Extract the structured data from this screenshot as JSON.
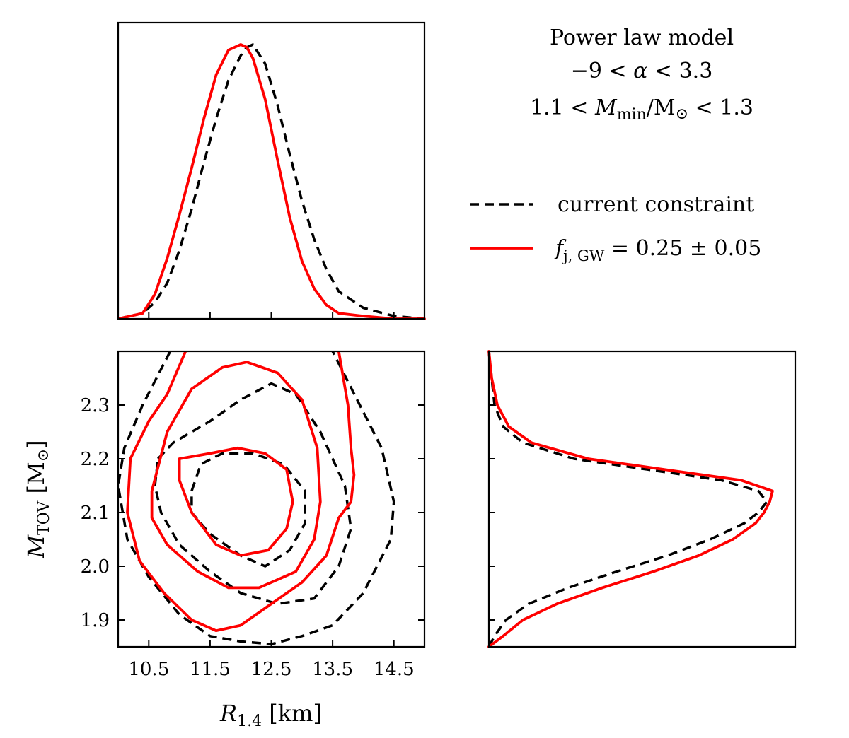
{
  "chart_data": [
    {
      "type": "line",
      "panel": "R14 marginal",
      "xlim": [
        10.0,
        15.0
      ],
      "x": [
        10.0,
        10.4,
        10.6,
        10.8,
        11.0,
        11.2,
        11.4,
        11.6,
        11.8,
        12.0,
        12.1,
        12.2,
        12.4,
        12.6,
        12.8,
        13.0,
        13.2,
        13.4,
        13.6,
        14.0,
        14.5,
        15.0
      ],
      "series": [
        {
          "name": "current constraint",
          "color": "#000000",
          "style": "dashed",
          "values": [
            0.0,
            0.02,
            0.06,
            0.13,
            0.25,
            0.4,
            0.57,
            0.73,
            0.87,
            0.96,
            0.99,
            1.0,
            0.93,
            0.78,
            0.6,
            0.43,
            0.29,
            0.18,
            0.1,
            0.04,
            0.01,
            0.0
          ]
        },
        {
          "name": "f_j,GW = 0.25 ± 0.05",
          "color": "#ff0000",
          "style": "solid",
          "values": [
            0.0,
            0.02,
            0.09,
            0.22,
            0.38,
            0.55,
            0.73,
            0.89,
            0.98,
            1.0,
            0.99,
            0.95,
            0.8,
            0.58,
            0.37,
            0.21,
            0.11,
            0.05,
            0.02,
            0.01,
            0.0,
            0.0
          ]
        }
      ],
      "ylim": [
        0,
        1.08
      ]
    },
    {
      "type": "line",
      "panel": "R14 vs MTOV contours",
      "xlabel": "R_{1.4} [km]",
      "ylabel": "M_TOV [M_⊙]",
      "xlim": [
        10.0,
        15.0
      ],
      "ylim": [
        1.85,
        2.4
      ],
      "xticks": [
        "10.5",
        "11.5",
        "12.5",
        "13.5",
        "14.5"
      ],
      "yticks": [
        "1.9",
        "2.0",
        "2.1",
        "2.2",
        "2.3"
      ],
      "contours": [
        {
          "series": "current constraint",
          "color": "#000000",
          "style": "dashed",
          "level": "inner",
          "points": [
            [
              11.2,
              2.14
            ],
            [
              11.35,
              2.19
            ],
            [
              11.7,
              2.21
            ],
            [
              12.2,
              2.21
            ],
            [
              12.7,
              2.19
            ],
            [
              13.05,
              2.14
            ],
            [
              13.05,
              2.08
            ],
            [
              12.8,
              2.03
            ],
            [
              12.4,
              2.0
            ],
            [
              12.0,
              2.02
            ],
            [
              11.5,
              2.06
            ],
            [
              11.2,
              2.1
            ],
            [
              11.2,
              2.14
            ]
          ]
        },
        {
          "series": "current constraint",
          "color": "#000000",
          "style": "dashed",
          "level": "middle",
          "points": [
            [
              10.65,
              2.2
            ],
            [
              10.9,
              2.23
            ],
            [
              11.5,
              2.27
            ],
            [
              12.0,
              2.31
            ],
            [
              12.5,
              2.34
            ],
            [
              12.9,
              2.32
            ],
            [
              13.3,
              2.25
            ],
            [
              13.7,
              2.15
            ],
            [
              13.8,
              2.07
            ],
            [
              13.6,
              2.0
            ],
            [
              13.2,
              1.94
            ],
            [
              12.6,
              1.93
            ],
            [
              12.0,
              1.95
            ],
            [
              11.5,
              1.99
            ],
            [
              11.0,
              2.04
            ],
            [
              10.7,
              2.1
            ],
            [
              10.6,
              2.15
            ],
            [
              10.65,
              2.2
            ]
          ]
        },
        {
          "series": "current constraint",
          "color": "#000000",
          "style": "dashed",
          "level": "outer",
          "points": [
            [
              10.85,
              2.4
            ],
            [
              10.4,
              2.3
            ],
            [
              10.1,
              2.22
            ],
            [
              10.0,
              2.15
            ],
            [
              10.15,
              2.05
            ],
            [
              10.5,
              1.98
            ],
            [
              11.0,
              1.91
            ],
            [
              11.5,
              1.87
            ],
            [
              12.0,
              1.86
            ],
            [
              12.5,
              1.855
            ],
            [
              13.0,
              1.87
            ],
            [
              13.5,
              1.89
            ],
            [
              14.0,
              1.95
            ],
            [
              14.45,
              2.05
            ],
            [
              14.5,
              2.12
            ],
            [
              14.3,
              2.22
            ],
            [
              13.9,
              2.31
            ],
            [
              13.5,
              2.4
            ]
          ]
        },
        {
          "series": "f_j,GW = 0.25 ± 0.05",
          "color": "#ff0000",
          "style": "solid",
          "level": "inner",
          "points": [
            [
              11.0,
              2.2
            ],
            [
              11.5,
              2.21
            ],
            [
              11.95,
              2.22
            ],
            [
              12.4,
              2.21
            ],
            [
              12.75,
              2.18
            ],
            [
              12.85,
              2.12
            ],
            [
              12.75,
              2.07
            ],
            [
              12.45,
              2.03
            ],
            [
              12.0,
              2.02
            ],
            [
              11.6,
              2.04
            ],
            [
              11.2,
              2.1
            ],
            [
              11.0,
              2.16
            ],
            [
              11.0,
              2.2
            ]
          ]
        },
        {
          "series": "f_j,GW = 0.25 ± 0.05",
          "color": "#ff0000",
          "style": "solid",
          "level": "middle",
          "points": [
            [
              10.55,
              2.14
            ],
            [
              10.8,
              2.25
            ],
            [
              11.2,
              2.33
            ],
            [
              11.7,
              2.37
            ],
            [
              12.1,
              2.38
            ],
            [
              12.6,
              2.36
            ],
            [
              13.0,
              2.31
            ],
            [
              13.25,
              2.22
            ],
            [
              13.3,
              2.12
            ],
            [
              13.2,
              2.05
            ],
            [
              12.9,
              1.99
            ],
            [
              12.3,
              1.96
            ],
            [
              11.8,
              1.96
            ],
            [
              11.3,
              1.99
            ],
            [
              10.8,
              2.04
            ],
            [
              10.55,
              2.09
            ],
            [
              10.55,
              2.14
            ]
          ]
        },
        {
          "series": "f_j,GW = 0.25 ± 0.05",
          "color": "#ff0000",
          "style": "solid",
          "level": "outer",
          "points": [
            [
              11.1,
              2.4
            ],
            [
              10.8,
              2.32
            ],
            [
              10.5,
              2.27
            ],
            [
              10.2,
              2.2
            ],
            [
              10.15,
              2.1
            ],
            [
              10.35,
              2.01
            ],
            [
              10.75,
              1.95
            ],
            [
              11.2,
              1.9
            ],
            [
              11.6,
              1.88
            ],
            [
              12.0,
              1.89
            ],
            [
              12.5,
              1.93
            ],
            [
              13.0,
              1.97
            ],
            [
              13.4,
              2.02
            ],
            [
              13.6,
              2.09
            ],
            [
              13.8,
              2.12
            ],
            [
              13.85,
              2.17
            ],
            [
              13.8,
              2.22
            ],
            [
              13.75,
              2.3
            ],
            [
              13.6,
              2.4
            ]
          ]
        }
      ]
    },
    {
      "type": "line",
      "panel": "MTOV marginal",
      "orientation": "horizontal",
      "ylim": [
        1.85,
        2.4
      ],
      "y": [
        1.85,
        1.87,
        1.9,
        1.93,
        1.96,
        1.99,
        2.02,
        2.05,
        2.08,
        2.1,
        2.12,
        2.14,
        2.16,
        2.18,
        2.2,
        2.23,
        2.26,
        2.3,
        2.35,
        2.4
      ],
      "series": [
        {
          "name": "current constraint",
          "color": "#000000",
          "style": "dashed",
          "values": [
            0.0,
            0.02,
            0.06,
            0.14,
            0.28,
            0.45,
            0.63,
            0.78,
            0.9,
            0.95,
            0.98,
            0.95,
            0.82,
            0.56,
            0.3,
            0.12,
            0.05,
            0.02,
            0.01,
            0.0
          ]
        },
        {
          "name": "f_j,GW = 0.25 ± 0.05",
          "color": "#ff0000",
          "style": "solid",
          "values": [
            0.0,
            0.05,
            0.12,
            0.24,
            0.4,
            0.58,
            0.74,
            0.86,
            0.94,
            0.97,
            0.99,
            1.0,
            0.89,
            0.62,
            0.35,
            0.15,
            0.07,
            0.03,
            0.01,
            0.0
          ]
        }
      ],
      "xlim": [
        0,
        1.08
      ]
    }
  ],
  "annotation": {
    "line1": "Power law model",
    "line2_left": "−9 < ",
    "line2_sym": "α",
    "line2_right": " < 3.3",
    "line3_left": "1.1 < ",
    "line3_sym": "M",
    "line3_sub": "min",
    "line3_right": "/M",
    "line3_sun": "⊙",
    "line3_end": " < 1.3"
  },
  "legend": {
    "item1": "current constraint",
    "item2_sym": "f",
    "item2_sub": "j, GW",
    "item2_rest": " = 0.25 ± 0.05"
  },
  "labels": {
    "xlabel_sym": "R",
    "xlabel_sub": "1.4",
    "xlabel_unit": " [km]",
    "ylabel_sym": "M",
    "ylabel_sub": "TOV",
    "ylabel_unit": " [M",
    "ylabel_sun": "⊙",
    "ylabel_close": "]"
  }
}
